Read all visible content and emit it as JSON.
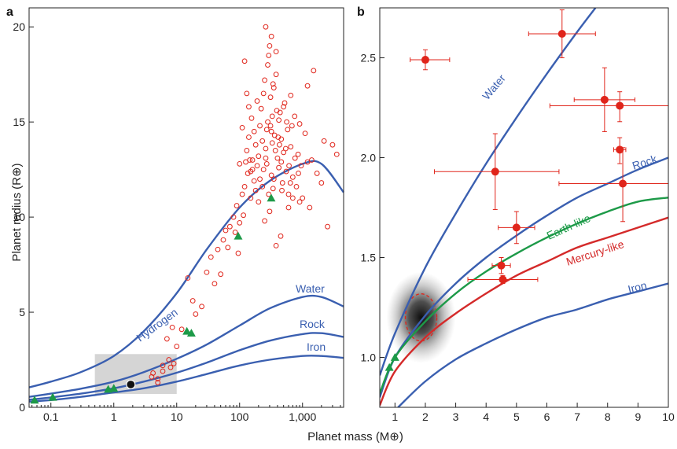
{
  "figure": {
    "xlabel": "Planet mass (M⊕)",
    "ylabel": "Planet radius (R⊕)"
  },
  "chart_data": [
    {
      "panel": "a",
      "type": "scatter",
      "x_scale": "log",
      "xlim": [
        0.045,
        4500
      ],
      "ylim": [
        0,
        21
      ],
      "xticks": [
        0.1,
        1,
        10,
        100,
        1000
      ],
      "xtick_labels": [
        "0.1",
        "1",
        "10",
        "100",
        "1,000"
      ],
      "yticks": [
        0,
        5,
        10,
        15,
        20
      ],
      "ytick_labels": [
        "0",
        "5",
        "10",
        "15",
        "20"
      ],
      "highlight_region": {
        "x": [
          0.5,
          10
        ],
        "y": [
          0.7,
          2.8
        ]
      },
      "curves": [
        {
          "name": "Hydrogen",
          "color": "#3a5fb0",
          "x": [
            0.045,
            0.1,
            0.3,
            1,
            3,
            10,
            30,
            100,
            300,
            1000,
            2000,
            4500
          ],
          "y": [
            1.05,
            1.35,
            1.85,
            2.7,
            4.0,
            6.0,
            8.3,
            10.5,
            11.9,
            12.8,
            12.8,
            11.3
          ]
        },
        {
          "name": "Water",
          "color": "#3a5fb0",
          "x": [
            0.045,
            0.1,
            0.3,
            1,
            3,
            10,
            30,
            100,
            300,
            1000,
            2000,
            4500
          ],
          "y": [
            0.55,
            0.72,
            0.98,
            1.35,
            1.85,
            2.55,
            3.3,
            4.3,
            5.2,
            5.8,
            5.8,
            5.3
          ]
        },
        {
          "name": "Rock",
          "color": "#3a5fb0",
          "x": [
            0.045,
            0.1,
            0.3,
            1,
            3,
            10,
            30,
            100,
            300,
            1000,
            2000,
            4500
          ],
          "y": [
            0.4,
            0.52,
            0.72,
            1.0,
            1.35,
            1.82,
            2.35,
            3.0,
            3.5,
            3.85,
            3.9,
            3.7
          ]
        },
        {
          "name": "Iron",
          "color": "#3a5fb0",
          "x": [
            0.045,
            0.1,
            0.3,
            1,
            3,
            10,
            30,
            100,
            300,
            1000,
            2000,
            4500
          ],
          "y": [
            0.3,
            0.38,
            0.55,
            0.78,
            1.0,
            1.35,
            1.75,
            2.2,
            2.5,
            2.7,
            2.7,
            2.6
          ]
        }
      ],
      "series": [
        {
          "name": "Exoplanets",
          "marker": "open-circle",
          "color": "#e0251b",
          "points": [
            [
              4.2,
              1.8
            ],
            [
              5,
              1.5
            ],
            [
              6,
              2.2
            ],
            [
              7.5,
              2.5
            ],
            [
              8,
              2.1
            ],
            [
              9,
              2.3
            ],
            [
              7,
              3.6
            ],
            [
              8.5,
              4.2
            ],
            [
              6,
              1.9
            ],
            [
              5,
              1.3
            ],
            [
              4,
              1.6
            ],
            [
              10,
              3.2
            ],
            [
              12,
              4.1
            ],
            [
              15,
              6.8
            ],
            [
              18,
              5.6
            ],
            [
              20,
              4.9
            ],
            [
              25,
              5.3
            ],
            [
              30,
              7.1
            ],
            [
              35,
              7.9
            ],
            [
              40,
              6.5
            ],
            [
              45,
              8.3
            ],
            [
              50,
              7.0
            ],
            [
              55,
              8.8
            ],
            [
              60,
              9.3
            ],
            [
              70,
              9.5
            ],
            [
              80,
              10.0
            ],
            [
              65,
              8.4
            ],
            [
              85,
              9.2
            ],
            [
              90,
              10.6
            ],
            [
              95,
              8.1
            ],
            [
              100,
              9.7
            ],
            [
              110,
              11.2
            ],
            [
              115,
              10.1
            ],
            [
              120,
              11.6
            ],
            [
              125,
              12.9
            ],
            [
              130,
              13.5
            ],
            [
              135,
              12.3
            ],
            [
              140,
              14.2
            ],
            [
              145,
              13.0
            ],
            [
              150,
              11.0
            ],
            [
              155,
              15.2
            ],
            [
              160,
              12.5
            ],
            [
              170,
              14.5
            ],
            [
              180,
              13.8
            ],
            [
              190,
              16.1
            ],
            [
              200,
              13.2
            ],
            [
              210,
              12.0
            ],
            [
              220,
              15.7
            ],
            [
              230,
              14.0
            ],
            [
              240,
              16.5
            ],
            [
              250,
              17.2
            ],
            [
              260,
              13.6
            ],
            [
              270,
              12.8
            ],
            [
              280,
              15.0
            ],
            [
              290,
              18.5
            ],
            [
              300,
              19.0
            ],
            [
              310,
              14.8
            ],
            [
              320,
              12.2
            ],
            [
              330,
              13.9
            ],
            [
              340,
              11.5
            ],
            [
              350,
              16.8
            ],
            [
              360,
              14.3
            ],
            [
              380,
              17.5
            ],
            [
              400,
              13.1
            ],
            [
              420,
              12.6
            ],
            [
              440,
              15.5
            ],
            [
              460,
              14.1
            ],
            [
              480,
              11.8
            ],
            [
              500,
              13.4
            ],
            [
              520,
              16.0
            ],
            [
              550,
              12.4
            ],
            [
              580,
              14.6
            ],
            [
              600,
              11.2
            ],
            [
              650,
              13.7
            ],
            [
              700,
              12.1
            ],
            [
              750,
              15.3
            ],
            [
              800,
              11.6
            ],
            [
              850,
              13.3
            ],
            [
              900,
              14.9
            ],
            [
              950,
              12.7
            ],
            [
              1000,
              11.0
            ],
            [
              1100,
              14.4
            ],
            [
              1200,
              12.9
            ],
            [
              1300,
              10.5
            ],
            [
              1400,
              13.0
            ],
            [
              1500,
              17.7
            ],
            [
              1700,
              12.3
            ],
            [
              2000,
              11.8
            ],
            [
              2200,
              14.0
            ],
            [
              2500,
              9.5
            ],
            [
              3000,
              13.8
            ],
            [
              3500,
              13.3
            ],
            [
              200,
              10.8
            ],
            [
              250,
              9.8
            ],
            [
              180,
              11.4
            ],
            [
              160,
              13.0
            ],
            [
              140,
              15.8
            ],
            [
              130,
              16.5
            ],
            [
              120,
              18.2
            ],
            [
              110,
              14.7
            ],
            [
              100,
              12.8
            ],
            [
              320,
              19.5
            ],
            [
              280,
              18.0
            ],
            [
              260,
              20.0
            ],
            [
              380,
              18.7
            ],
            [
              420,
              15.1
            ],
            [
              240,
              12.5
            ],
            [
              600,
              10.5
            ],
            [
              700,
              11.0
            ],
            [
              450,
              9.0
            ],
            [
              380,
              8.5
            ],
            [
              300,
              10.3
            ],
            [
              500,
              15.8
            ],
            [
              650,
              16.4
            ],
            [
              900,
              10.8
            ],
            [
              1200,
              16.9
            ],
            [
              320,
              14.5
            ],
            [
              260,
              13.1
            ],
            [
              230,
              11.6
            ],
            [
              210,
              14.8
            ],
            [
              190,
              12.7
            ],
            [
              170,
              11.9
            ],
            [
              150,
              12.4
            ],
            [
              330,
              15.3
            ],
            [
              370,
              13.5
            ],
            [
              410,
              14.2
            ],
            [
              460,
              12.9
            ],
            [
              540,
              13.6
            ],
            [
              610,
              12.7
            ],
            [
              680,
              14.8
            ],
            [
              760,
              13.1
            ],
            [
              860,
              12.3
            ],
            [
              310,
              16.3
            ],
            [
              350,
              12.0
            ],
            [
              290,
              11.2
            ],
            [
              270,
              14.6
            ],
            [
              340,
              17.0
            ],
            [
              390,
              15.6
            ],
            [
              430,
              13.8
            ],
            [
              470,
              11.4
            ],
            [
              560,
              15.0
            ],
            [
              640,
              11.8
            ]
          ]
        },
        {
          "name": "Solar system planets",
          "marker": "triangle",
          "color": "#1d9a48",
          "points": [
            [
              0.055,
              0.38
            ],
            [
              0.107,
              0.53
            ],
            [
              0.815,
              0.95
            ],
            [
              1.0,
              1.0
            ],
            [
              14.5,
              4.0
            ],
            [
              17.1,
              3.9
            ],
            [
              95,
              9.0
            ],
            [
              318,
              11.0
            ]
          ]
        },
        {
          "name": "Kepler-78b",
          "marker": "filled-circle",
          "color": "#111111",
          "points": [
            [
              1.86,
              1.2
            ]
          ]
        }
      ]
    },
    {
      "panel": "b",
      "type": "scatter",
      "xlim": [
        0.5,
        10
      ],
      "ylim": [
        0.75,
        2.75
      ],
      "xticks": [
        1,
        2,
        3,
        4,
        5,
        6,
        7,
        8,
        9,
        10
      ],
      "yticks": [
        1.0,
        1.5,
        2.0,
        2.5
      ],
      "ytick_labels": [
        "1.0",
        "1.5",
        "2.0",
        "2.5"
      ],
      "curves": [
        {
          "name": "Water",
          "color": "#3a5fb0",
          "x": [
            0.5,
            1,
            2,
            3,
            4,
            5,
            6,
            7,
            7.6
          ],
          "y": [
            0.91,
            1.12,
            1.45,
            1.72,
            1.97,
            2.2,
            2.42,
            2.63,
            2.75
          ]
        },
        {
          "name": "Rock",
          "color": "#3a5fb0",
          "x": [
            0.5,
            1,
            2,
            3,
            4,
            5,
            6,
            7,
            8,
            9,
            10
          ],
          "y": [
            0.8,
            1.0,
            1.21,
            1.37,
            1.5,
            1.61,
            1.71,
            1.8,
            1.87,
            1.94,
            2.0
          ]
        },
        {
          "name": "Earth-like",
          "color": "#1d9a48",
          "x": [
            0.5,
            1,
            2,
            3,
            4,
            5,
            6,
            7,
            8,
            9,
            10
          ],
          "y": [
            0.82,
            1.0,
            1.18,
            1.32,
            1.43,
            1.52,
            1.6,
            1.67,
            1.73,
            1.78,
            1.8
          ]
        },
        {
          "name": "Mercury-like",
          "color": "#d42a2a",
          "x": [
            0.5,
            1,
            2,
            3,
            4,
            5,
            6,
            7,
            8,
            9,
            10
          ],
          "y": [
            0.76,
            0.93,
            1.1,
            1.22,
            1.32,
            1.41,
            1.48,
            1.55,
            1.6,
            1.65,
            1.7
          ]
        },
        {
          "name": "Iron",
          "color": "#3a5fb0",
          "x": [
            1.1,
            2,
            3,
            4,
            5,
            6,
            7,
            8,
            9,
            10
          ],
          "y": [
            0.75,
            0.88,
            0.99,
            1.07,
            1.14,
            1.2,
            1.24,
            1.29,
            1.33,
            1.37
          ]
        }
      ],
      "kepler78_density_center": [
        1.86,
        1.2
      ],
      "series": [
        {
          "name": "Exoplanets with error bars",
          "marker": "filled-circle",
          "color": "#e0251b",
          "points": [
            {
              "x": 2.0,
              "y": 2.49,
              "xerr": [
                1.5,
                2.8
              ],
              "yerr": [
                2.44,
                2.54
              ]
            },
            {
              "x": 6.5,
              "y": 2.62,
              "xerr": [
                5.4,
                7.6
              ],
              "yerr": [
                2.5,
                2.74
              ]
            },
            {
              "x": 7.9,
              "y": 2.29,
              "xerr": [
                6.9,
                8.9
              ],
              "yerr": [
                2.13,
                2.45
              ]
            },
            {
              "x": 8.4,
              "y": 2.26,
              "xerr": [
                6.1,
                10.4
              ],
              "yerr": [
                2.18,
                2.33
              ]
            },
            {
              "x": 8.4,
              "y": 2.04,
              "xerr": [
                8.2,
                8.6
              ],
              "yerr": [
                1.97,
                2.1
              ]
            },
            {
              "x": 8.5,
              "y": 1.87,
              "xerr": [
                6.4,
                10.5
              ],
              "yerr": [
                1.68,
                2.05
              ]
            },
            {
              "x": 4.3,
              "y": 1.93,
              "xerr": [
                2.3,
                6.4
              ],
              "yerr": [
                1.74,
                2.12
              ]
            },
            {
              "x": 5.0,
              "y": 1.65,
              "xerr": [
                4.4,
                5.6
              ],
              "yerr": [
                1.57,
                1.73
              ]
            },
            {
              "x": 4.5,
              "y": 1.46,
              "xerr": [
                4.2,
                4.8
              ],
              "yerr": [
                1.42,
                1.5
              ]
            },
            {
              "x": 4.55,
              "y": 1.39,
              "xerr": [
                3.4,
                5.7
              ],
              "yerr": [
                1.37,
                1.41
              ]
            }
          ]
        },
        {
          "name": "Solar system planets",
          "marker": "triangle",
          "color": "#1d9a48",
          "points": [
            [
              0.815,
              0.95
            ],
            [
              1.0,
              1.0
            ]
          ]
        }
      ]
    }
  ]
}
